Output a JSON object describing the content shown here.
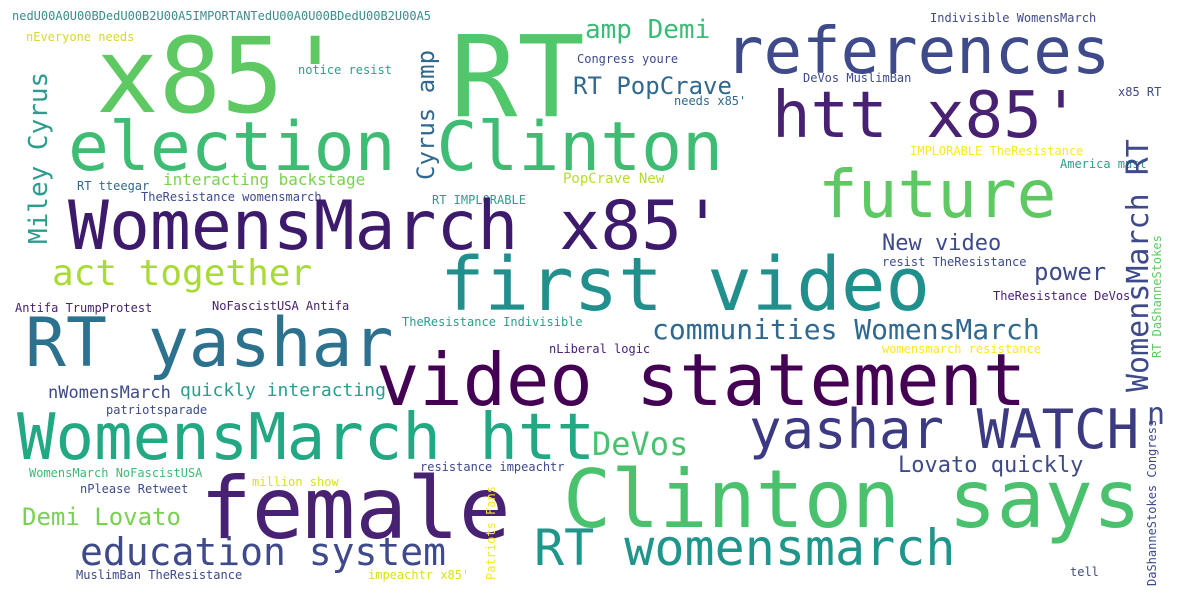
{
  "words": [
    {
      "text": "nedU00A0U00BDedU00B2U00A5IMPORTANTedU00A0U00BDedU00B2U00A5",
      "color": "#3b8c8c"
    },
    {
      "text": "nEveryone needs",
      "color": "#d8d82a"
    },
    {
      "text": "x85'",
      "color": "#5ec962"
    },
    {
      "text": "RT",
      "color": "#50c76b"
    },
    {
      "text": "references",
      "color": "#3e4a89"
    },
    {
      "text": "Indivisible WomensMarch",
      "color": "#3e4a89"
    },
    {
      "text": "amp Demi",
      "color": "#3bbb75"
    },
    {
      "text": "Congress youre",
      "color": "#3e4a89"
    },
    {
      "text": "notice resist",
      "color": "#2a9d8e"
    },
    {
      "text": "DeVos MuslimBan",
      "color": "#3e4a89"
    },
    {
      "text": "x85 RT",
      "color": "#3e4a89"
    },
    {
      "text": "RT PopCrave",
      "color": "#31688e"
    },
    {
      "text": "needs x85'",
      "color": "#31688e"
    },
    {
      "text": "htt x85'",
      "color": "#482173"
    },
    {
      "text": "election Clinton",
      "color": "#3fbc73"
    },
    {
      "text": "future",
      "color": "#5ec962"
    },
    {
      "text": "IMPLORABLE TheResistance",
      "color": "#fde725"
    },
    {
      "text": "America must",
      "color": "#2a9d8e"
    },
    {
      "text": "interacting backstage",
      "color": "#7ad151"
    },
    {
      "text": "RT tteegar",
      "color": "#31688e"
    },
    {
      "text": "PopCrave New",
      "color": "#b5de2b"
    },
    {
      "text": "TheResistance womensmarch",
      "color": "#3e4a89"
    },
    {
      "text": "RT IMPLORABLE",
      "color": "#2a9d8e"
    },
    {
      "text": "WomensMarch x85'",
      "color": "#3d1a6c"
    },
    {
      "text": "New video",
      "color": "#3e4a89"
    },
    {
      "text": "act together",
      "color": "#a8db34"
    },
    {
      "text": "first video",
      "color": "#21908d"
    },
    {
      "text": "resist TheResistance",
      "color": "#3e4a89"
    },
    {
      "text": "power",
      "color": "#3e4a89"
    },
    {
      "text": "Antifa TrumpProtest",
      "color": "#482173"
    },
    {
      "text": "NoFascistUSA Antifa",
      "color": "#482173"
    },
    {
      "text": "TheResistance DeVos",
      "color": "#482173"
    },
    {
      "text": "TheResistance Indivisible",
      "color": "#2a9d8e"
    },
    {
      "text": "communities WomensMarch",
      "color": "#31688e"
    },
    {
      "text": "RT yashar",
      "color": "#2c718e"
    },
    {
      "text": "nLiberal logic",
      "color": "#482173"
    },
    {
      "text": "womensmarch resistance",
      "color": "#fde725"
    },
    {
      "text": "video statement",
      "color": "#440154"
    },
    {
      "text": "quickly interacting",
      "color": "#2a9d8e"
    },
    {
      "text": "nWomensMarch",
      "color": "#3e4a89"
    },
    {
      "text": "patriotsparade",
      "color": "#3e4a89"
    },
    {
      "text": "yashar WATCH",
      "color": "#3b3a82"
    },
    {
      "text": "n",
      "color": "#3e4a89"
    },
    {
      "text": "WomensMarch htt",
      "color": "#23a884"
    },
    {
      "text": "DeVos",
      "color": "#4ac16d"
    },
    {
      "text": "Lovato quickly",
      "color": "#3e4a89"
    },
    {
      "text": "WomensMarch NoFascistUSA",
      "color": "#3bbb75"
    },
    {
      "text": "resistance impeachtr",
      "color": "#3e4a89"
    },
    {
      "text": "million show",
      "color": "#d8e219"
    },
    {
      "text": "nPlease Retweet",
      "color": "#3e4a89"
    },
    {
      "text": "female",
      "color": "#482173"
    },
    {
      "text": "Clinton says",
      "color": "#4ac16d"
    },
    {
      "text": "Demi Lovato",
      "color": "#7ad151"
    },
    {
      "text": "education system",
      "color": "#3e4a89"
    },
    {
      "text": "RT womensmarch",
      "color": "#1f968b"
    },
    {
      "text": "MuslimBan TheResistance",
      "color": "#3e4a89"
    },
    {
      "text": "impeachtr x85'",
      "color": "#d8e219"
    },
    {
      "text": "tell",
      "color": "#3e4a89"
    },
    {
      "text": "Miley Cyrus",
      "color": "#2a9d8e"
    },
    {
      "text": "Cyrus amp",
      "color": "#31688e"
    },
    {
      "text": "WomensMarch RT",
      "color": "#3e4a89"
    },
    {
      "text": "RT DaShanneStokes",
      "color": "#5ec962"
    },
    {
      "text": "DaShanneStokes Congress",
      "color": "#3e4a89"
    },
    {
      "text": "Patriots Fans",
      "color": "#fde725"
    }
  ]
}
